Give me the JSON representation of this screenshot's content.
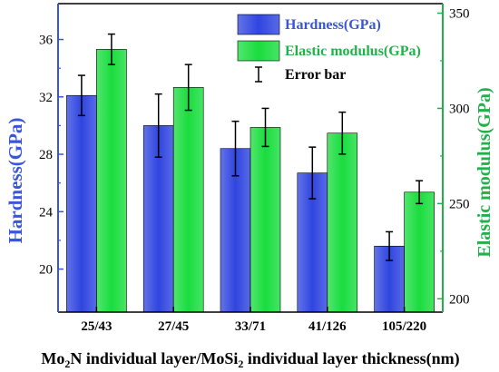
{
  "chart_data": {
    "type": "bar",
    "categories": [
      "25/43",
      "27/45",
      "33/71",
      "41/126",
      "105/220"
    ],
    "xlabel_parts": [
      {
        "text": "Mo",
        "sub": false
      },
      {
        "text": "2",
        "sub": true
      },
      {
        "text": "N individual layer/MoSi",
        "sub": false
      },
      {
        "text": "2",
        "sub": true
      },
      {
        "text": " individual layer thickness(nm)",
        "sub": false
      }
    ],
    "y_left": {
      "label": "Hardness(GPa)",
      "range": [
        17,
        38.5
      ],
      "ticks": [
        20,
        24,
        28,
        32,
        36
      ],
      "tick_labels": [
        "20",
        "24",
        "28",
        "32",
        "36"
      ],
      "color": "#3a56d8"
    },
    "y_right": {
      "label": "Elastic modulus(GPa)",
      "range": [
        193,
        355
      ],
      "ticks": [
        200,
        250,
        300,
        350
      ],
      "tick_labels": [
        "200",
        "250",
        "300",
        "350"
      ],
      "color": "#22b04a"
    },
    "series": [
      {
        "name": "Hardness(GPa)",
        "axis": "left",
        "color": "#2f45e0",
        "values": [
          32.1,
          30.0,
          28.4,
          26.7,
          21.6
        ],
        "errors": [
          1.4,
          2.2,
          1.9,
          1.8,
          1.0
        ]
      },
      {
        "name": "Elastic modulus(GPa)",
        "axis": "right",
        "color": "#19dd3e",
        "values": [
          331,
          311,
          290,
          287,
          256
        ],
        "errors": [
          8,
          12,
          10,
          11,
          6
        ]
      }
    ],
    "legend": {
      "placement": "top-right",
      "error_bar_label": "Error bar"
    },
    "grid": false
  }
}
